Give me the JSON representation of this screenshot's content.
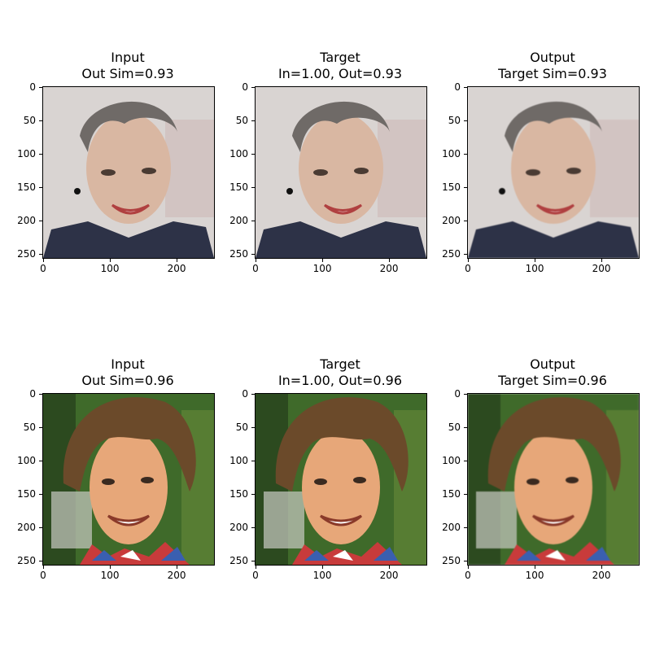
{
  "figure": {
    "ytick_labels": [
      "0",
      "50",
      "100",
      "150",
      "200",
      "250"
    ],
    "xtick_labels": [
      "0",
      "100",
      "200"
    ],
    "rows": [
      {
        "panels": [
          {
            "title_line1": "Input",
            "title_line2": "Out Sim=0.93"
          },
          {
            "title_line1": "Target",
            "title_line2": "In=1.00, Out=0.93"
          },
          {
            "title_line1": "Output",
            "title_line2": "Target Sim=0.93"
          }
        ]
      },
      {
        "panels": [
          {
            "title_line1": "Input",
            "title_line2": "Out Sim=0.96"
          },
          {
            "title_line1": "Target",
            "title_line2": "In=1.00, Out=0.96"
          },
          {
            "title_line1": "Output",
            "title_line2": "Target Sim=0.96"
          }
        ]
      }
    ]
  },
  "colors": {
    "row1_background": "#d9d4d2",
    "row1_hair": "#6f6a67",
    "row1_skin": "#d9b7a2",
    "row1_clothing": "#2d3247",
    "row2_background": "#3f6a2a",
    "row2_hair": "#6b4a2a",
    "row2_skin": "#e7a779",
    "row2_scarf_red": "#c83b3b",
    "row2_scarf_blue": "#3a5fb0"
  }
}
